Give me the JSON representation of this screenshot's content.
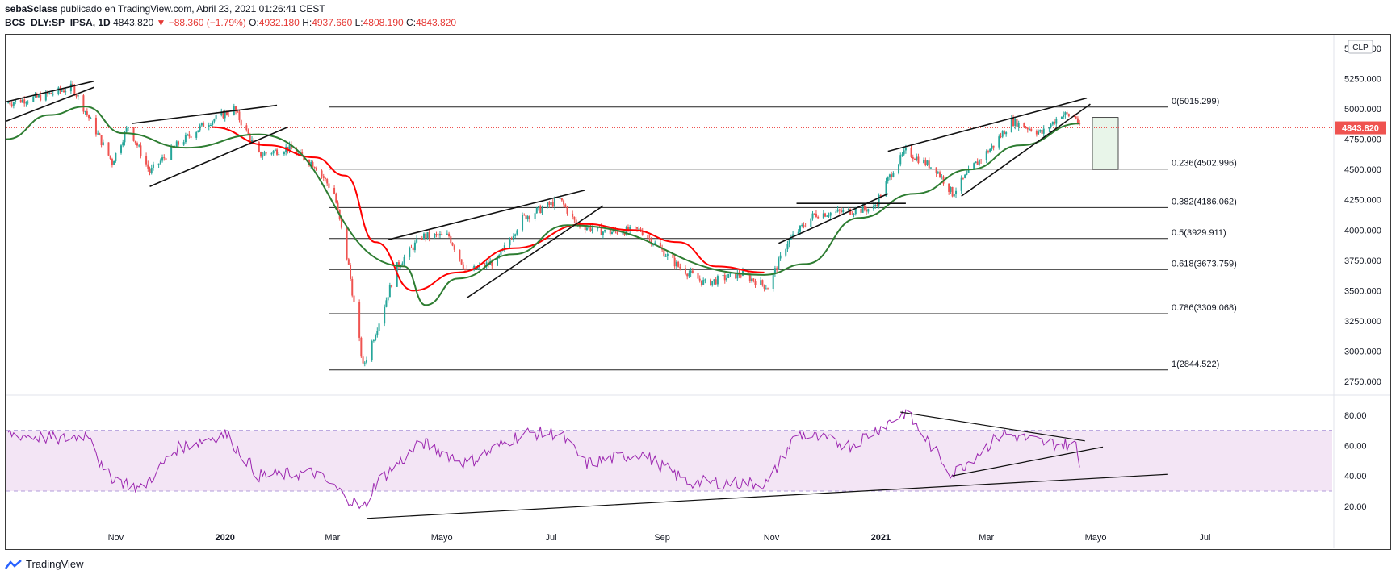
{
  "header": {
    "user": "sebaSclass",
    "published_text": "publicado en TradingView.com, Abril 23, 2021 01:26:41 CEST",
    "symbol": "BCS_DLY:SP_IPSA, 1D",
    "last": "4843.820",
    "change_arrow": "▼",
    "change": "−88.360 (−1.79%)",
    "o_label": "O:",
    "o": "4932.180",
    "h_label": "H:",
    "h": "4937.660",
    "l_label": "L:",
    "l": "4808.190",
    "c_label": "C:",
    "c": "4843.820"
  },
  "currency_badge": "CLP",
  "last_price_badge": "4843.820",
  "footer_brand": "TradingView",
  "colors": {
    "up": "#26a69a",
    "down": "#ef5350",
    "ma_fast": "#2e7d32",
    "ma_slow": "#ff0000",
    "rsi": "#9c27b0",
    "rsi_band": "#f3e5f5",
    "accent": "#e53935"
  },
  "chart_data": [
    {
      "type": "candlestick",
      "title": "BCS_DLY:SP_IPSA, 1D",
      "x_ticks": [
        "Nov",
        "2020",
        "Mar",
        "Mayo",
        "Jul",
        "Sep",
        "Nov",
        "2021",
        "Mar",
        "Mayo",
        "Jul"
      ],
      "y_ticks": [
        "2750.000",
        "3000.000",
        "3250.000",
        "3500.000",
        "3750.000",
        "4000.000",
        "4250.000",
        "4500.000",
        "4750.000",
        "5000.000",
        "5250.000",
        "5500.000"
      ],
      "ylim": [
        2650,
        5600
      ],
      "close_series": [
        {
          "date": "2019-09-01",
          "value": 5050
        },
        {
          "date": "2019-09-20",
          "value": 5100
        },
        {
          "date": "2019-10-08",
          "value": 5180
        },
        {
          "date": "2019-10-18",
          "value": 4900
        },
        {
          "date": "2019-10-30",
          "value": 4560
        },
        {
          "date": "2019-11-08",
          "value": 4860
        },
        {
          "date": "2019-11-20",
          "value": 4480
        },
        {
          "date": "2019-12-05",
          "value": 4700
        },
        {
          "date": "2019-12-20",
          "value": 4870
        },
        {
          "date": "2020-01-06",
          "value": 5000
        },
        {
          "date": "2020-01-20",
          "value": 4620
        },
        {
          "date": "2020-02-05",
          "value": 4680
        },
        {
          "date": "2020-02-20",
          "value": 4540
        },
        {
          "date": "2020-03-02",
          "value": 4300
        },
        {
          "date": "2020-03-10",
          "value": 3700
        },
        {
          "date": "2020-03-18",
          "value": 2870
        },
        {
          "date": "2020-03-26",
          "value": 3200
        },
        {
          "date": "2020-04-06",
          "value": 3700
        },
        {
          "date": "2020-04-20",
          "value": 3950
        },
        {
          "date": "2020-05-05",
          "value": 3950
        },
        {
          "date": "2020-05-15",
          "value": 3650
        },
        {
          "date": "2020-06-01",
          "value": 3750
        },
        {
          "date": "2020-06-15",
          "value": 4100
        },
        {
          "date": "2020-07-06",
          "value": 4250
        },
        {
          "date": "2020-07-15",
          "value": 4050
        },
        {
          "date": "2020-08-01",
          "value": 3980
        },
        {
          "date": "2020-08-20",
          "value": 4000
        },
        {
          "date": "2020-09-10",
          "value": 3700
        },
        {
          "date": "2020-09-25",
          "value": 3560
        },
        {
          "date": "2020-10-15",
          "value": 3640
        },
        {
          "date": "2020-10-30",
          "value": 3530
        },
        {
          "date": "2020-11-10",
          "value": 3900
        },
        {
          "date": "2020-11-25",
          "value": 4130
        },
        {
          "date": "2020-12-10",
          "value": 4150
        },
        {
          "date": "2020-12-28",
          "value": 4180
        },
        {
          "date": "2021-01-08",
          "value": 4500
        },
        {
          "date": "2021-01-15",
          "value": 4650
        },
        {
          "date": "2021-02-01",
          "value": 4500
        },
        {
          "date": "2021-02-10",
          "value": 4300
        },
        {
          "date": "2021-02-22",
          "value": 4530
        },
        {
          "date": "2021-03-05",
          "value": 4700
        },
        {
          "date": "2021-03-15",
          "value": 4900
        },
        {
          "date": "2021-04-01",
          "value": 4800
        },
        {
          "date": "2021-04-12",
          "value": 4960
        },
        {
          "date": "2021-04-20",
          "value": 4932
        },
        {
          "date": "2021-04-22",
          "value": 4843.82
        }
      ],
      "moving_averages": [
        {
          "name": "",
          "color": "#ff0000",
          "points": [
            {
              "date": "2019-12-25",
              "value": 4850
            },
            {
              "date": "2020-01-25",
              "value": 4700
            },
            {
              "date": "2020-02-20",
              "value": 4600
            },
            {
              "date": "2020-03-08",
              "value": 4450
            },
            {
              "date": "2020-03-25",
              "value": 3900
            },
            {
              "date": "2020-04-15",
              "value": 3500
            },
            {
              "date": "2020-05-10",
              "value": 3650
            },
            {
              "date": "2020-06-10",
              "value": 3850
            },
            {
              "date": "2020-07-20",
              "value": 4050
            },
            {
              "date": "2020-08-15",
              "value": 4000
            },
            {
              "date": "2020-09-10",
              "value": 3900
            },
            {
              "date": "2020-10-01",
              "value": 3700
            },
            {
              "date": "2020-10-28",
              "value": 3650
            }
          ]
        },
        {
          "name": "",
          "color": "#2e7d32",
          "points": [
            {
              "date": "2019-09-01",
              "value": 4750
            },
            {
              "date": "2019-09-25",
              "value": 4950
            },
            {
              "date": "2019-10-15",
              "value": 5020
            },
            {
              "date": "2019-11-05",
              "value": 4800
            },
            {
              "date": "2019-12-10",
              "value": 4680
            },
            {
              "date": "2020-01-20",
              "value": 4790
            },
            {
              "date": "2020-04-10",
              "value": 3700
            },
            {
              "date": "2020-04-22",
              "value": 3380
            },
            {
              "date": "2020-05-10",
              "value": 3600
            },
            {
              "date": "2020-06-10",
              "value": 3800
            },
            {
              "date": "2020-07-10",
              "value": 4040
            },
            {
              "date": "2020-10-28",
              "value": 3630
            },
            {
              "date": "2020-11-20",
              "value": 3720
            },
            {
              "date": "2020-12-20",
              "value": 4100
            },
            {
              "date": "2021-01-20",
              "value": 4300
            },
            {
              "date": "2021-02-20",
              "value": 4500
            },
            {
              "date": "2021-03-20",
              "value": 4700
            },
            {
              "date": "2021-04-22",
              "value": 4880
            }
          ]
        }
      ],
      "fibonacci": [
        {
          "label": "0(5015.299)",
          "value": 5015.299
        },
        {
          "label": "0.236(4502.996)",
          "value": 4502.996
        },
        {
          "label": "0.382(4186.062)",
          "value": 4186.062
        },
        {
          "label": "0.5(3929.911)",
          "value": 3929.911
        },
        {
          "label": "0.618(3673.759)",
          "value": 3673.759
        },
        {
          "label": "0.786(3309.068)",
          "value": 3309.068
        },
        {
          "label": "1(2844.522)",
          "value": 2844.522
        }
      ],
      "last_price": 4843.82
    },
    {
      "type": "line",
      "title": "",
      "y_ticks": [
        "20.00",
        "40.00",
        "60.00",
        "80.00"
      ],
      "ylim": [
        5,
        90
      ],
      "band": [
        30,
        70
      ],
      "rsi_series": [
        {
          "date": "2019-09-01",
          "value": 68
        },
        {
          "date": "2019-10-01",
          "value": 64
        },
        {
          "date": "2019-10-18",
          "value": 68
        },
        {
          "date": "2019-10-25",
          "value": 42
        },
        {
          "date": "2019-11-15",
          "value": 31
        },
        {
          "date": "2019-12-05",
          "value": 58
        },
        {
          "date": "2020-01-01",
          "value": 68
        },
        {
          "date": "2020-01-20",
          "value": 40
        },
        {
          "date": "2020-02-20",
          "value": 42
        },
        {
          "date": "2020-03-18",
          "value": 18
        },
        {
          "date": "2020-03-25",
          "value": 35
        },
        {
          "date": "2020-04-20",
          "value": 62
        },
        {
          "date": "2020-05-15",
          "value": 48
        },
        {
          "date": "2020-06-15",
          "value": 68
        },
        {
          "date": "2020-07-06",
          "value": 68
        },
        {
          "date": "2020-07-20",
          "value": 48
        },
        {
          "date": "2020-08-20",
          "value": 55
        },
        {
          "date": "2020-09-15",
          "value": 36
        },
        {
          "date": "2020-10-30",
          "value": 35
        },
        {
          "date": "2020-11-15",
          "value": 68
        },
        {
          "date": "2020-12-15",
          "value": 60
        },
        {
          "date": "2021-01-15",
          "value": 82
        },
        {
          "date": "2021-02-10",
          "value": 41
        },
        {
          "date": "2021-03-10",
          "value": 68
        },
        {
          "date": "2021-04-01",
          "value": 62
        },
        {
          "date": "2021-04-20",
          "value": 60
        },
        {
          "date": "2021-04-22",
          "value": 46
        }
      ]
    }
  ]
}
